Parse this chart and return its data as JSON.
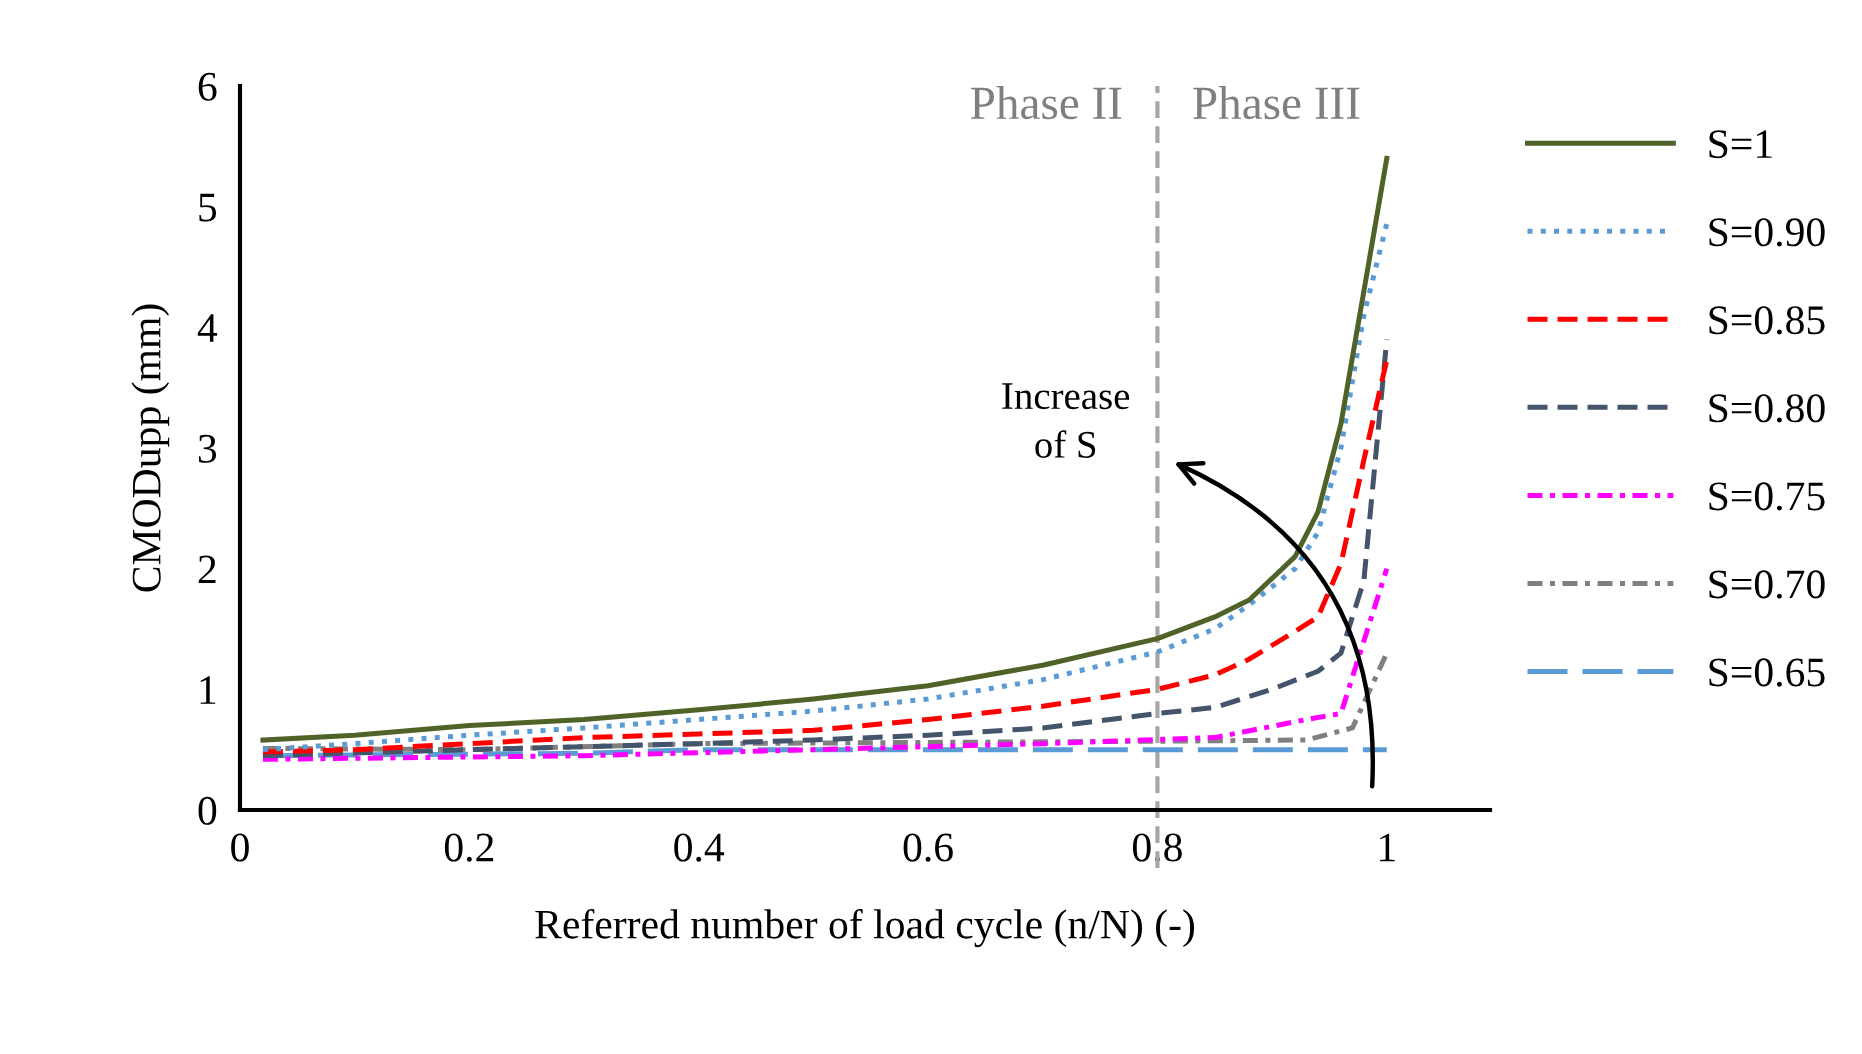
{
  "chart_data": {
    "type": "line",
    "xlabel": "Referred number of load cycle (n/N) (-)",
    "ylabel": "CMODupp (mm)",
    "xlim": [
      0,
      1.09
    ],
    "xticks": [
      0,
      0.2,
      0.4,
      0.6,
      0.8,
      1
    ],
    "ylim": [
      0,
      6
    ],
    "yticks": [
      0,
      1,
      2,
      3,
      4,
      5,
      6
    ],
    "grid": false,
    "legend": "right",
    "marker": "none",
    "ref_lines": [
      {
        "axis": "x",
        "value": 0.8,
        "color": "#a6a6a6",
        "line_style": "dashed"
      }
    ],
    "annotations": [
      "Phase II",
      "Phase III",
      {
        "text": "Increase of S",
        "x": 0.8,
        "y": 2.9
      }
    ],
    "series": [
      {
        "name": "S=1",
        "color": "#4f6228",
        "line_style": "solid",
        "x": [
          0.02,
          0.1,
          0.2,
          0.3,
          0.4,
          0.5,
          0.6,
          0.7,
          0.8,
          0.85,
          0.88,
          0.92,
          0.94,
          0.96,
          0.98,
          1.0
        ],
        "values": [
          0.58,
          0.62,
          0.7,
          0.75,
          0.83,
          0.92,
          1.03,
          1.2,
          1.42,
          1.6,
          1.74,
          2.1,
          2.47,
          3.2,
          4.3,
          5.4
        ]
      },
      {
        "name": "S=0.90",
        "color": "#5b9bd5",
        "line_style": "dotted",
        "x": [
          0.02,
          0.1,
          0.2,
          0.3,
          0.4,
          0.5,
          0.6,
          0.7,
          0.8,
          0.85,
          0.88,
          0.92,
          0.94,
          0.96,
          0.98,
          1.0
        ],
        "values": [
          0.5,
          0.55,
          0.62,
          0.68,
          0.75,
          0.82,
          0.92,
          1.08,
          1.31,
          1.5,
          1.7,
          2.0,
          2.3,
          3.0,
          4.1,
          4.86
        ]
      },
      {
        "name": "S=0.85",
        "color": "#ff0000",
        "line_style": "dashed",
        "x": [
          0.02,
          0.1,
          0.2,
          0.3,
          0.4,
          0.5,
          0.6,
          0.7,
          0.8,
          0.85,
          0.88,
          0.92,
          0.94,
          0.96,
          0.98,
          1.0
        ],
        "values": [
          0.48,
          0.5,
          0.55,
          0.6,
          0.63,
          0.66,
          0.75,
          0.86,
          1.0,
          1.12,
          1.25,
          1.48,
          1.6,
          2.04,
          2.9,
          3.73
        ]
      },
      {
        "name": "S=0.80",
        "color": "#44546a",
        "line_style": "dashed",
        "x": [
          0.02,
          0.2,
          0.4,
          0.5,
          0.6,
          0.7,
          0.8,
          0.85,
          0.9,
          0.94,
          0.96,
          0.98,
          1.0
        ],
        "values": [
          0.45,
          0.5,
          0.55,
          0.58,
          0.62,
          0.68,
          0.8,
          0.85,
          1.0,
          1.15,
          1.3,
          1.9,
          3.9
        ]
      },
      {
        "name": "S=0.75",
        "color": "#ff00ff",
        "line_style": "dashdot",
        "x": [
          0.02,
          0.3,
          0.5,
          0.7,
          0.85,
          0.93,
          0.96,
          0.98,
          1.0
        ],
        "values": [
          0.42,
          0.45,
          0.5,
          0.55,
          0.6,
          0.75,
          0.8,
          1.4,
          2.0
        ]
      },
      {
        "name": "S=0.70",
        "color": "#808080",
        "line_style": "dashdot",
        "x": [
          0.02,
          0.2,
          0.4,
          0.6,
          0.8,
          0.93,
          0.97,
          1.0
        ],
        "values": [
          0.51,
          0.5,
          0.55,
          0.56,
          0.57,
          0.58,
          0.68,
          1.3
        ]
      },
      {
        "name": "S=0.65",
        "color": "#5b9bd5",
        "line_style": "dashed",
        "x": [
          0.02,
          0.3,
          0.4,
          0.6,
          0.8,
          1.0
        ],
        "values": [
          0.45,
          0.47,
          0.5,
          0.5,
          0.5,
          0.5
        ]
      }
    ]
  }
}
